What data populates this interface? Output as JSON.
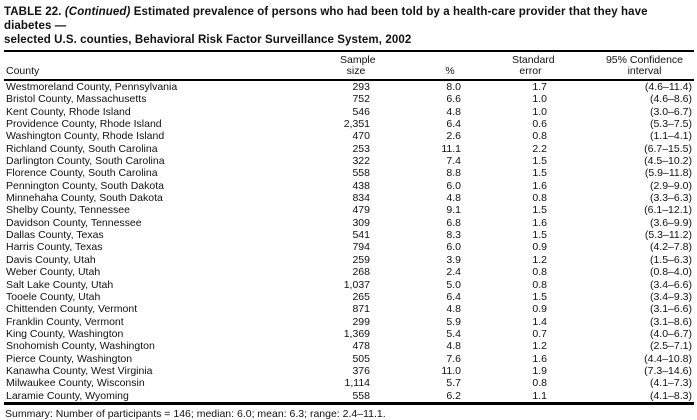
{
  "title": {
    "prefix": "TABLE 22. ",
    "continued": "(Continued)",
    "line1_rest": " Estimated prevalence of persons who had been told by a health-care provider that they have diabetes —",
    "line2": "selected U.S. counties, Behavioral Risk Factor Surveillance System, 2002"
  },
  "table": {
    "headers": {
      "county": "County",
      "sample": "Sample\nsize",
      "percent": "%",
      "se": "Standard\nerror",
      "ci": "95% Confidence\ninterval"
    },
    "rows": [
      {
        "county": "Westmoreland County, Pennsylvania",
        "sample": "293",
        "pct": "8.0",
        "se": "1.7",
        "ci": "(4.6–11.4)"
      },
      {
        "county": "Bristol County, Massachusetts",
        "sample": "752",
        "pct": "6.6",
        "se": "1.0",
        "ci": "(4.6–8.6)"
      },
      {
        "county": "Kent County, Rhode Island",
        "sample": "546",
        "pct": "4.8",
        "se": "1.0",
        "ci": "(3.0–6.7)"
      },
      {
        "county": "Providence County, Rhode Island",
        "sample": "2,351",
        "pct": "6.4",
        "se": "0.6",
        "ci": "(5.3–7.5)"
      },
      {
        "county": "Washington County, Rhode Island",
        "sample": "470",
        "pct": "2.6",
        "se": "0.8",
        "ci": "(1.1–4.1)"
      },
      {
        "county": "Richland County, South Carolina",
        "sample": "253",
        "pct": "11.1",
        "se": "2.2",
        "ci": "(6.7–15.5)"
      },
      {
        "county": "Darlington County, South Carolina",
        "sample": "322",
        "pct": "7.4",
        "se": "1.5",
        "ci": "(4.5–10.2)"
      },
      {
        "county": "Florence County, South Carolina",
        "sample": "558",
        "pct": "8.8",
        "se": "1.5",
        "ci": "(5.9–11.8)"
      },
      {
        "county": "Pennington County, South Dakota",
        "sample": "438",
        "pct": "6.0",
        "se": "1.6",
        "ci": "(2.9–9.0)"
      },
      {
        "county": "Minnehaha County, South Dakota",
        "sample": "834",
        "pct": "4.8",
        "se": "0.8",
        "ci": "(3.3–6.3)"
      },
      {
        "county": "Shelby County, Tennessee",
        "sample": "479",
        "pct": "9.1",
        "se": "1.5",
        "ci": "(6.1–12.1)"
      },
      {
        "county": "Davidson County, Tennessee",
        "sample": "309",
        "pct": "6.8",
        "se": "1.6",
        "ci": "(3.6–9.9)"
      },
      {
        "county": "Dallas County, Texas",
        "sample": "541",
        "pct": "8.3",
        "se": "1.5",
        "ci": "(5.3–11.2)"
      },
      {
        "county": "Harris County, Texas",
        "sample": "794",
        "pct": "6.0",
        "se": "0.9",
        "ci": "(4.2–7.8)"
      },
      {
        "county": "Davis County, Utah",
        "sample": "259",
        "pct": "3.9",
        "se": "1.2",
        "ci": "(1.5–6.3)"
      },
      {
        "county": "Weber County, Utah",
        "sample": "268",
        "pct": "2.4",
        "se": "0.8",
        "ci": "(0.8–4.0)"
      },
      {
        "county": "Salt Lake County, Utah",
        "sample": "1,037",
        "pct": "5.0",
        "se": "0.8",
        "ci": "(3.4–6.6)"
      },
      {
        "county": "Tooele County, Utah",
        "sample": "265",
        "pct": "6.4",
        "se": "1.5",
        "ci": "(3.4–9.3)"
      },
      {
        "county": "Chittenden County, Vermont",
        "sample": "871",
        "pct": "4.8",
        "se": "0.9",
        "ci": "(3.1–6.6)"
      },
      {
        "county": "Franklin County, Vermont",
        "sample": "299",
        "pct": "5.9",
        "se": "1.4",
        "ci": "(3.1–8.6)"
      },
      {
        "county": "King County, Washington",
        "sample": "1,369",
        "pct": "5.4",
        "se": "0.7",
        "ci": "(4.0–6.7)"
      },
      {
        "county": "Snohomish County, Washington",
        "sample": "478",
        "pct": "4.8",
        "se": "1.2",
        "ci": "(2.5–7.1)"
      },
      {
        "county": "Pierce County, Washington",
        "sample": "505",
        "pct": "7.6",
        "se": "1.6",
        "ci": "(4.4–10.8)"
      },
      {
        "county": "Kanawha County, West Virginia",
        "sample": "376",
        "pct": "11.0",
        "se": "1.9",
        "ci": "(7.3–14.6)"
      },
      {
        "county": "Milwaukee County, Wisconsin",
        "sample": "1,114",
        "pct": "5.7",
        "se": "0.8",
        "ci": "(4.1–7.3)"
      },
      {
        "county": "Laramie County, Wyoming",
        "sample": "558",
        "pct": "6.2",
        "se": "1.1",
        "ci": "(4.1–8.3)"
      }
    ]
  },
  "summary": "Summary: Number of participants = 146; median: 6.0; mean: 6.3; range: 2.4–11.1.",
  "colors": {
    "text": "#111111",
    "rule": "#000000",
    "background": "#ffffff"
  }
}
